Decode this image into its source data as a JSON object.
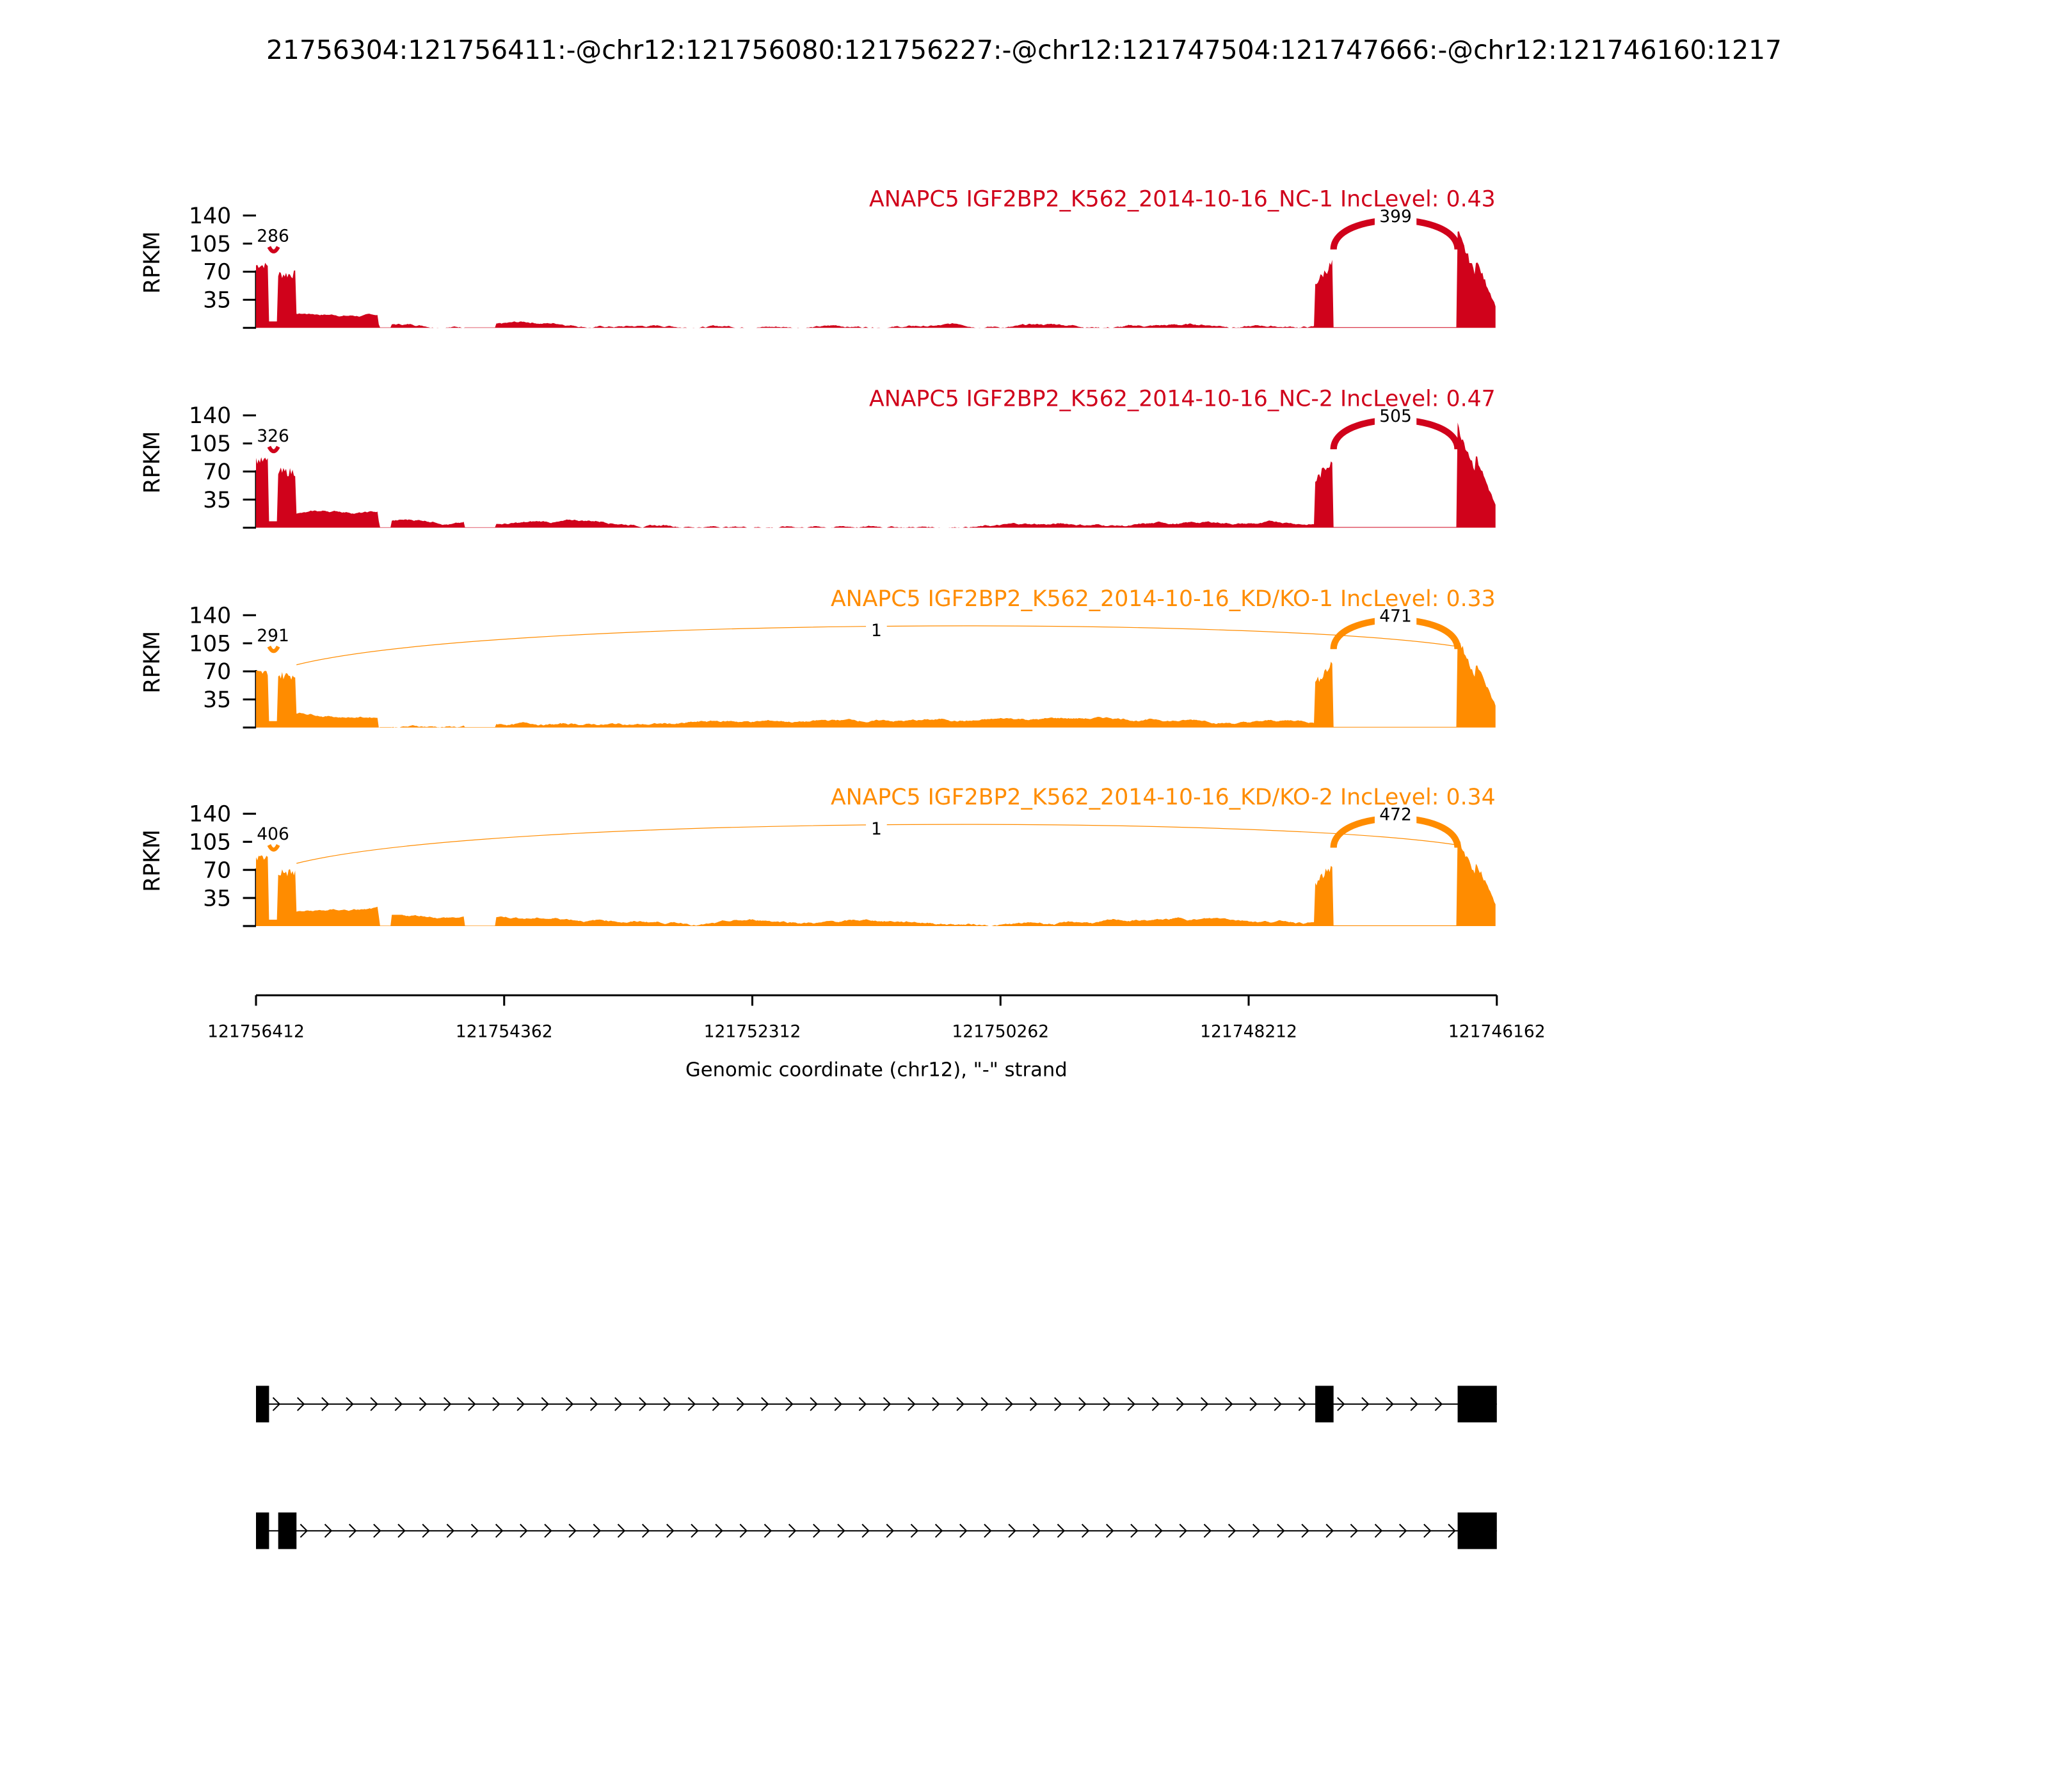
{
  "chart_data": {
    "type": "area",
    "title": "21756304:121756411:-@chr12:121756080:121756227:-@chr12:121747504:121747666:-@chr12:121746160:1217",
    "xlabel": "Genomic coordinate (chr12), \"-\" strand",
    "ylabel": "RPKM",
    "xlim": [
      121756412,
      121746162
    ],
    "x_ticks": [
      "121756412",
      "121754362",
      "121752312",
      "121750262",
      "121748212",
      "121746162"
    ],
    "ylim": [
      0,
      140
    ],
    "y_ticks": [
      "35",
      "70",
      "105",
      "140"
    ],
    "exons": [
      {
        "start": 121756411,
        "end": 121756304
      },
      {
        "start": 121756227,
        "end": 121756080
      },
      {
        "start": 121747666,
        "end": 121747504
      },
      {
        "start": 121746300,
        "end": 121746160
      }
    ],
    "panels": [
      {
        "title": "ANAPC5 IGF2BP2_K562_2014-10-16_NC-1 IncLevel: 0.43",
        "color": "#d0021b",
        "exon_levels": [
          82,
          72,
          85,
          120
        ],
        "junctions": [
          {
            "label": "286",
            "from": 0,
            "to": 1
          },
          {
            "label": "399",
            "from": 2,
            "to": 3
          }
        ]
      },
      {
        "title": "ANAPC5 IGF2BP2_K562_2014-10-16_NC-2 IncLevel: 0.47",
        "color": "#d0021b",
        "exon_levels": [
          88,
          75,
          90,
          128
        ],
        "junctions": [
          {
            "label": "326",
            "from": 0,
            "to": 1
          },
          {
            "label": "505",
            "from": 2,
            "to": 3
          }
        ]
      },
      {
        "title": "ANAPC5 IGF2BP2_K562_2014-10-16_KD/KO-1 IncLevel: 0.33",
        "color": "#ff8c00",
        "exon_levels": [
          72,
          70,
          85,
          112
        ],
        "junctions": [
          {
            "label": "291",
            "from": 0,
            "to": 1
          },
          {
            "label": "1",
            "from": 1,
            "to": 3
          },
          {
            "label": "471",
            "from": 2,
            "to": 3
          }
        ]
      },
      {
        "title": "ANAPC5 IGF2BP2_K562_2014-10-16_KD/KO-2 IncLevel: 0.34",
        "color": "#ff8c00",
        "exon_levels": [
          90,
          72,
          80,
          110
        ],
        "junctions": [
          {
            "label": "406",
            "from": 0,
            "to": 1
          },
          {
            "label": "1",
            "from": 1,
            "to": 3
          },
          {
            "label": "472",
            "from": 2,
            "to": 3
          }
        ]
      }
    ],
    "isoforms": [
      {
        "exons": [
          0,
          2,
          3
        ]
      },
      {
        "exons": [
          0,
          1,
          3
        ]
      }
    ]
  }
}
